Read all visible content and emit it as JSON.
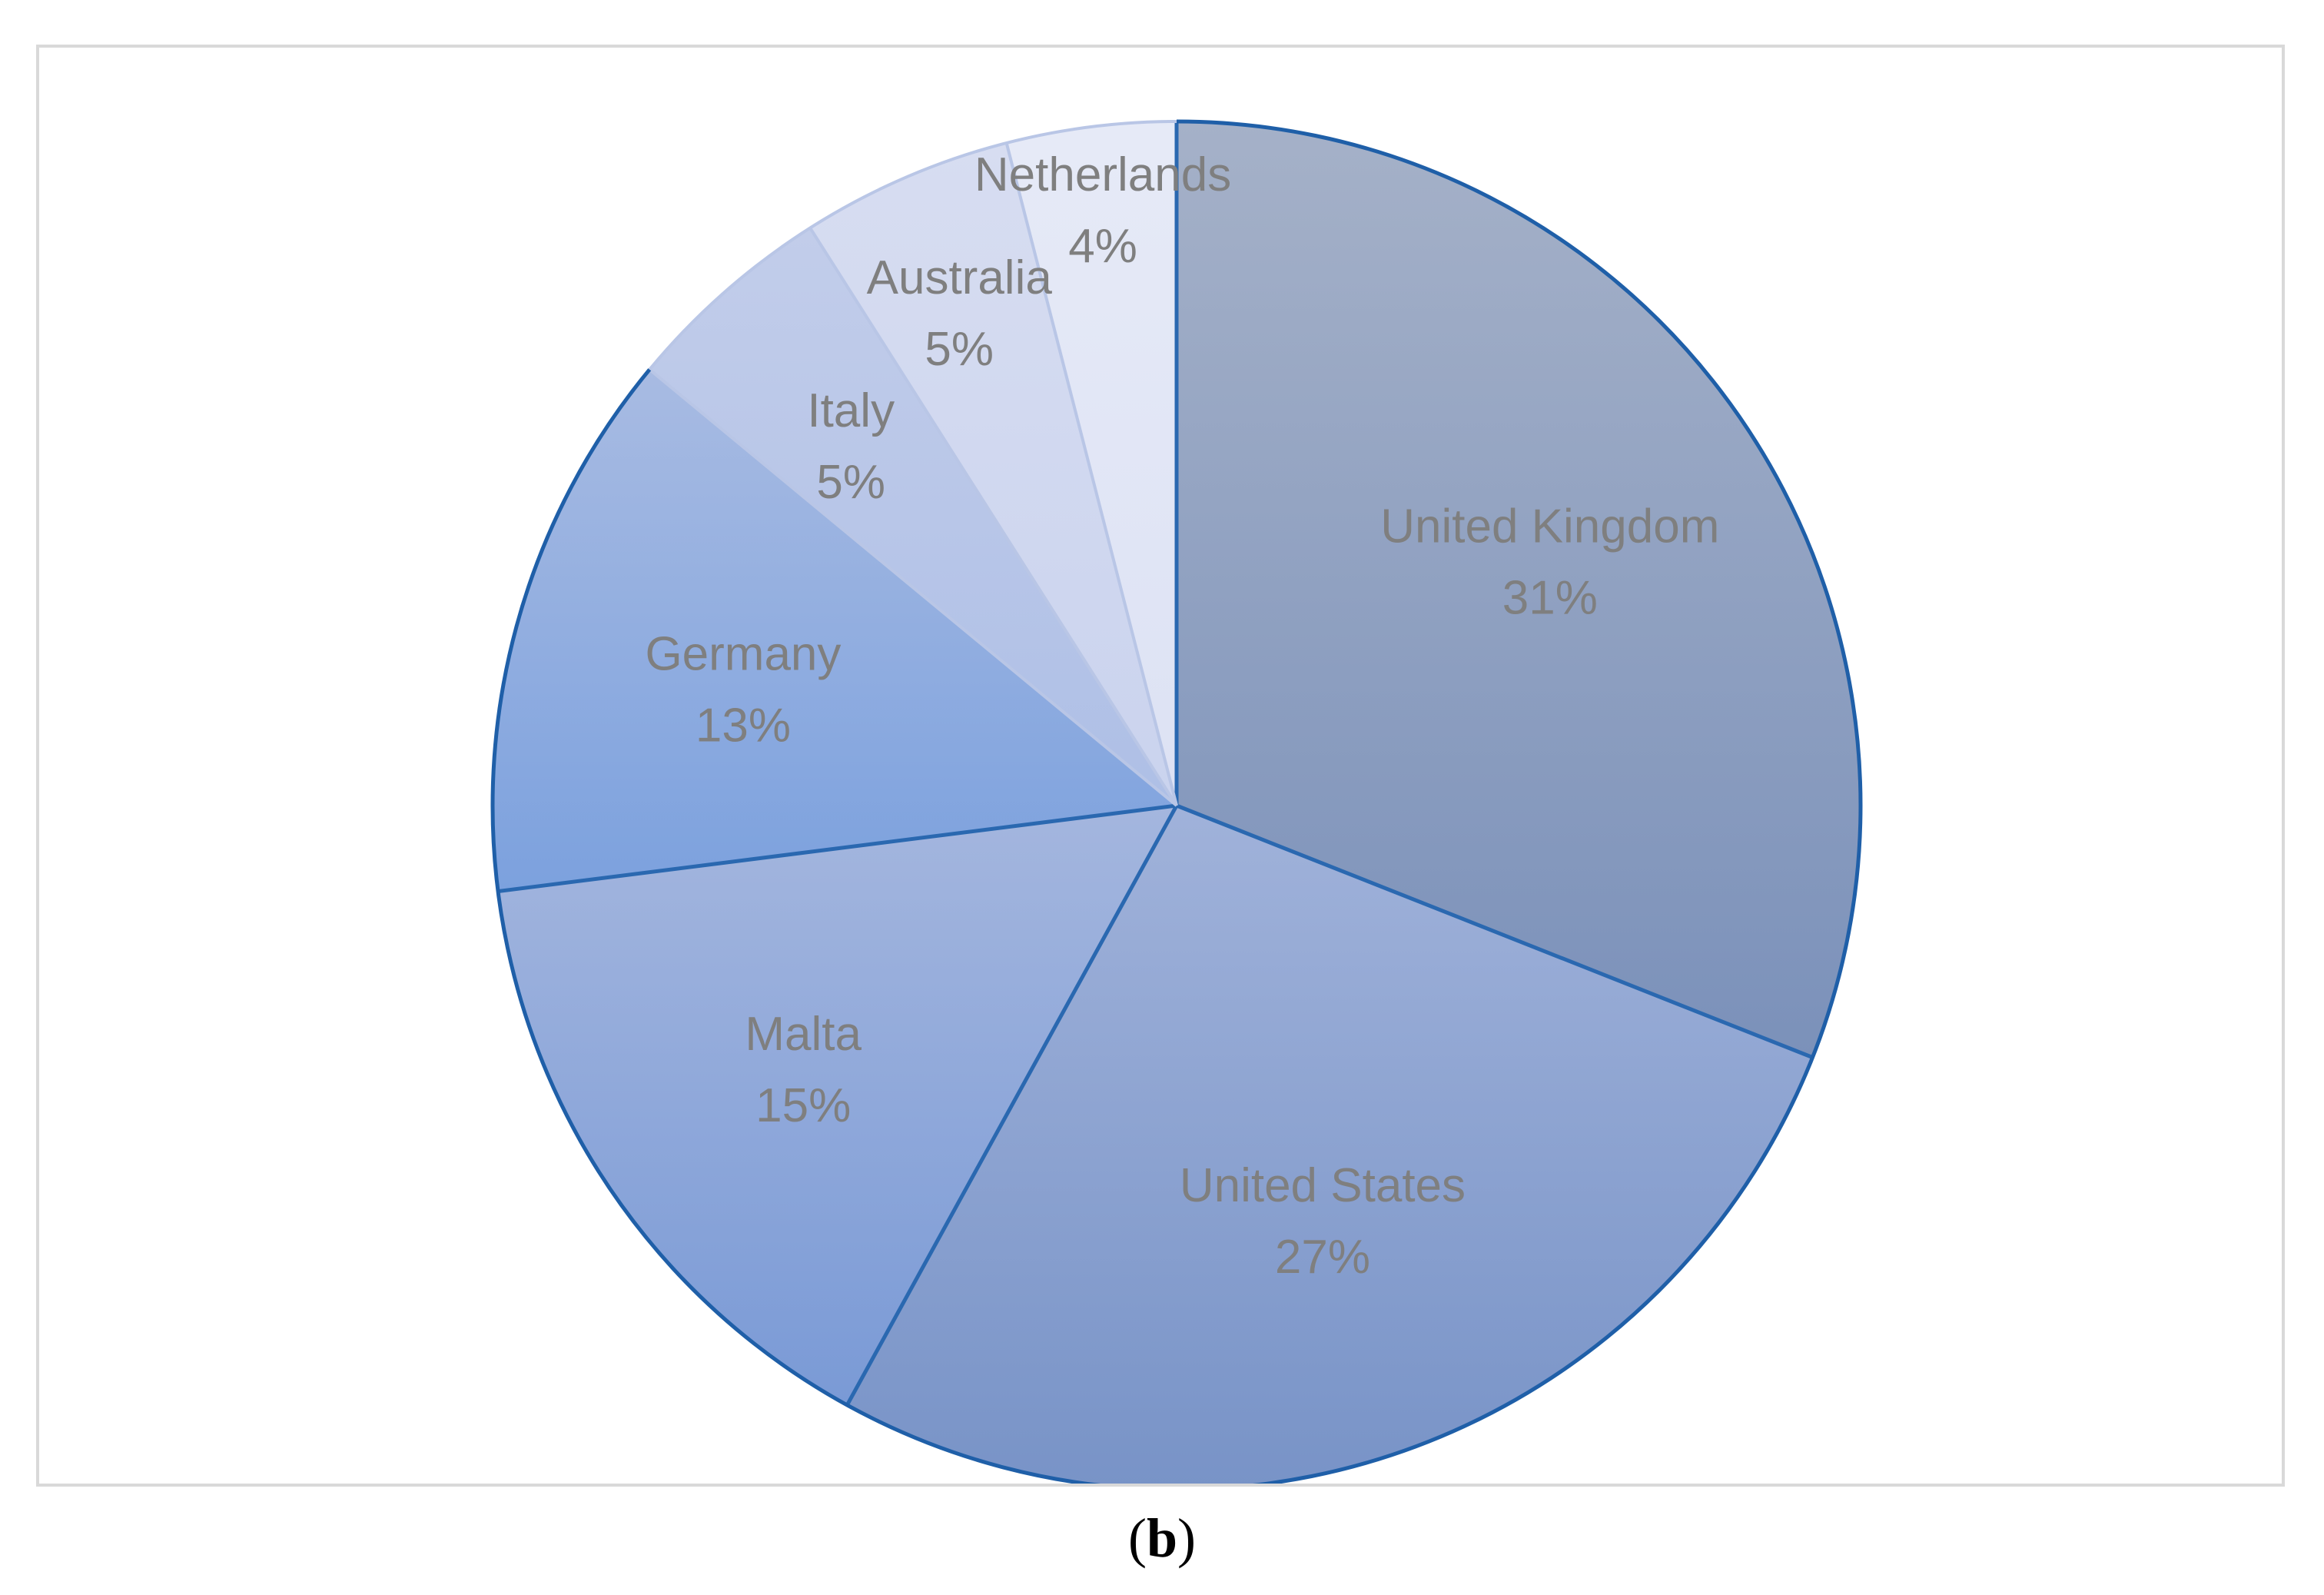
{
  "caption": {
    "open": "(",
    "letter": "b",
    "close": ")"
  },
  "chart_data": {
    "type": "pie",
    "title": "",
    "start_angle_deg": 0,
    "direction": "clockwise",
    "legend": "none",
    "slices": [
      {
        "label": "United Kingdom",
        "value": 31,
        "value_label": "31%",
        "color_top": "#a5b1c8",
        "color_bottom": "#7b91ba"
      },
      {
        "label": "United States",
        "value": 27,
        "value_label": "27%",
        "color_top": "#a0b2da",
        "color_bottom": "#7893c7"
      },
      {
        "label": "Malta",
        "value": 15,
        "value_label": "15%",
        "color_top": "#a4b6de",
        "color_bottom": "#7a9ad6"
      },
      {
        "label": "Germany",
        "value": 13,
        "value_label": "13%",
        "color_top": "#a8bbe2",
        "color_bottom": "#7ca1de"
      },
      {
        "label": "Italy",
        "value": 5,
        "value_label": "5%",
        "color_top": "#c2cdea",
        "color_bottom": "#aebfe6"
      },
      {
        "label": "Australia",
        "value": 5,
        "value_label": "5%",
        "color_top": "#d7ddf1",
        "color_bottom": "#cad3ee"
      },
      {
        "label": "Netherlands",
        "value": 4,
        "value_label": "4%",
        "color_top": "#e6eaf7",
        "color_bottom": "#dde2f4"
      }
    ],
    "colors": {
      "outer_stroke": "#1f5fa8",
      "separator_stroke": "#2a68b0",
      "label_text": "#7f7f7f",
      "frame_border": "#d9d9d9"
    }
  }
}
